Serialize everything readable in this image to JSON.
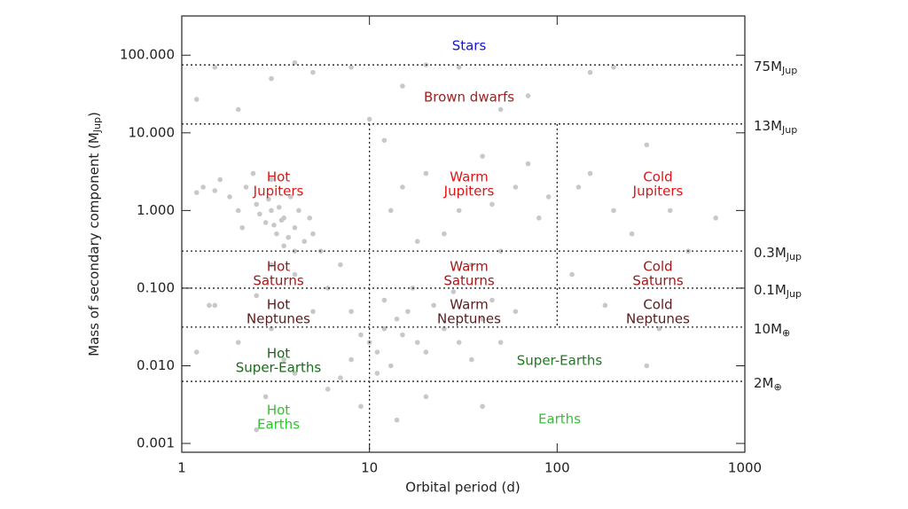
{
  "chart_data": {
    "type": "scatter",
    "x_label": "Orbital period (d)",
    "y_label": {
      "text": "Mass of secondary component (M",
      "sub": "Jup",
      "end": ")"
    },
    "log_x": true,
    "log_y": true,
    "xlim": [
      1,
      1000
    ],
    "ylim": [
      0.00077,
      320
    ],
    "xticks": [
      1,
      10,
      100,
      1000
    ],
    "yticks": [
      {
        "value": 0.001,
        "label": "0.001"
      },
      {
        "value": 0.01,
        "label": "0.010"
      },
      {
        "value": 0.1,
        "label": "0.100"
      },
      {
        "value": 1,
        "label": "1.000"
      },
      {
        "value": 10,
        "label": "10.000"
      },
      {
        "value": 100,
        "label": "100.000"
      }
    ],
    "color": "#c8c8c8",
    "x": [
      3,
      3.5,
      2.5,
      4,
      3.2,
      2.8,
      3.8,
      4.5,
      2.2,
      3,
      1.5,
      1.3,
      1.8,
      2,
      3.5,
      4.2,
      5,
      2.6,
      3.3,
      4,
      1.2,
      2.4,
      3.1,
      3.7,
      4.8,
      5.5,
      2.9,
      3.4,
      1.6,
      2.1,
      3,
      4,
      2.5,
      5,
      3,
      6,
      7,
      8,
      1.5,
      2,
      3.5,
      4,
      1.2,
      2.8,
      6,
      9,
      2.5,
      1.4,
      10,
      12,
      15,
      11,
      13,
      18,
      14,
      9,
      20,
      16,
      25,
      8,
      11,
      30,
      22,
      40,
      35,
      12,
      17,
      28,
      45,
      60,
      50,
      15,
      20,
      30,
      40,
      60,
      80,
      25,
      50,
      12,
      70,
      90,
      35,
      18,
      45,
      13,
      150,
      200,
      300,
      400,
      250,
      120,
      180,
      300,
      500,
      130,
      350,
      700,
      1.2,
      2,
      5,
      8,
      15,
      30,
      50,
      3,
      10,
      70,
      150,
      200,
      4,
      20,
      1.5,
      20,
      40,
      14,
      7
    ],
    "y": [
      1,
      0.8,
      1.2,
      0.6,
      0.5,
      0.7,
      1.5,
      0.4,
      2,
      2.5,
      1.8,
      2,
      1.5,
      1,
      0.35,
      1,
      0.5,
      0.9,
      1.1,
      0.3,
      1.7,
      3,
      0.65,
      0.45,
      0.8,
      0.3,
      1.4,
      0.75,
      2.5,
      0.6,
      0.2,
      0.15,
      0.08,
      0.05,
      0.03,
      0.1,
      0.2,
      0.05,
      0.06,
      0.02,
      0.012,
      0.008,
      0.015,
      0.004,
      0.005,
      0.003,
      0.0015,
      0.06,
      0.02,
      0.03,
      0.025,
      0.015,
      0.01,
      0.02,
      0.04,
      0.025,
      0.015,
      0.05,
      0.03,
      0.012,
      0.008,
      0.02,
      0.06,
      0.04,
      0.012,
      0.07,
      0.1,
      0.09,
      0.07,
      0.05,
      0.02,
      2,
      3,
      1,
      5,
      2,
      0.8,
      0.5,
      0.3,
      8,
      4,
      1.5,
      0.2,
      0.4,
      1.2,
      1,
      3,
      1,
      7,
      1,
      0.5,
      0.15,
      0.06,
      0.01,
      0.3,
      2,
      0.03,
      0.8,
      27,
      20,
      60,
      70,
      40,
      70,
      20,
      50,
      15,
      30,
      60,
      70,
      80,
      75,
      70,
      0.004,
      0.003,
      0.002,
      0.007
    ],
    "h_lines": [
      {
        "value": 75,
        "label": "75M",
        "sub": "Jup"
      },
      {
        "value": 13,
        "label": "13M",
        "sub": "Jup"
      },
      {
        "value": 0.3,
        "label": "0.3M",
        "sub": "Jup"
      },
      {
        "value": 0.1,
        "label": "0.1M",
        "sub": "Jup"
      },
      {
        "value": 0.0315,
        "label": "10M",
        "sub": "⊕"
      },
      {
        "value": 0.0063,
        "label": "2M",
        "sub": "⊕"
      }
    ],
    "v_lines": [
      {
        "value": 10,
        "from": 13,
        "to": 0.00077
      },
      {
        "value": 100,
        "from": 13,
        "to": 0.0315
      }
    ],
    "annotations": [
      {
        "lines": [
          "Stars"
        ],
        "color": "#1414d0"
      },
      {
        "lines": [
          "Brown dwarfs"
        ],
        "color": "#a02020"
      },
      {
        "lines": [
          "Hot",
          "Jupiters"
        ],
        "color": "#e01414"
      },
      {
        "lines": [
          "Warm",
          "Jupiters"
        ],
        "color": "#e01414"
      },
      {
        "lines": [
          "Cold",
          "Jupiters"
        ],
        "color": "#e01414"
      },
      {
        "lines": [
          "Hot",
          "Saturns"
        ],
        "color": "#a01818"
      },
      {
        "lines": [
          "Warm",
          "Saturns"
        ],
        "color": "#a01818"
      },
      {
        "lines": [
          "Cold",
          "Saturns"
        ],
        "color": "#a01818"
      },
      {
        "lines": [
          "Hot",
          "Neptunes"
        ],
        "color": "#5a1c1c"
      },
      {
        "lines": [
          "Warm",
          "Neptunes"
        ],
        "color": "#5a1c1c"
      },
      {
        "lines": [
          "Cold",
          "Neptunes"
        ],
        "color": "#5a1c1c"
      },
      {
        "lines": [
          "Hot",
          "Super-Earths"
        ],
        "color": "#1a6a1a"
      },
      {
        "lines": [
          "Super-Earths"
        ],
        "color": "#1f7a1f"
      },
      {
        "lines": [
          "Hot",
          "Earths"
        ],
        "color": "#2ec42e"
      },
      {
        "lines": [
          "Earths"
        ],
        "color": "#2ec42e"
      }
    ]
  }
}
